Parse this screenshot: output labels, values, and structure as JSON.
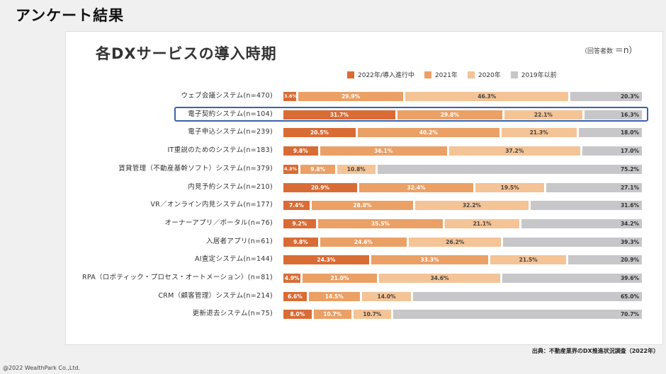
{
  "page_heading": "アンケート結果",
  "chart_title": "各DXサービスの導入時期",
  "n_note_prefix": "（回答者数",
  "n_note_suffix": "＝n）",
  "source": "出典：不動産業界のDX推進状況調査（2022年）",
  "copyright": "@2022 WealthPark Co.,Ltd.",
  "colors": {
    "2022": "#d96c35",
    "2021": "#eba066",
    "2020": "#f4c396",
    "2019": "#c7c7ca",
    "highlight": "#3b64a8"
  },
  "chart_data": {
    "type": "bar",
    "orientation": "horizontal",
    "stacked": true,
    "percent_scale": true,
    "legend_position": "top-right",
    "series": [
      {
        "name": "2022年/導入進行中"
      },
      {
        "name": "2021年"
      },
      {
        "name": "2020年"
      },
      {
        "name": "2019年以前"
      }
    ],
    "rows": [
      {
        "label": "ウェブ会議システム",
        "n": "(n=470)",
        "values": [
          3.6,
          29.9,
          46.3,
          20.3
        ]
      },
      {
        "label": "電子契約システム",
        "n": "(n=104)",
        "values": [
          31.7,
          29.8,
          22.1,
          16.3
        ],
        "highlight": true
      },
      {
        "label": "電子申込システム",
        "n": "(n=239)",
        "values": [
          20.5,
          40.2,
          21.3,
          18.0
        ]
      },
      {
        "label": "IT重説のためのシステム",
        "n": "(n=183)",
        "values": [
          9.8,
          36.1,
          37.2,
          17.0
        ]
      },
      {
        "label": "賃貸管理（不動産基幹ソフト）システム",
        "n": "(n=379)",
        "values": [
          4.3,
          9.8,
          10.8,
          75.2
        ]
      },
      {
        "label": "内見予約システム",
        "n": "(n=210)",
        "values": [
          20.9,
          32.4,
          19.5,
          27.1
        ]
      },
      {
        "label": "VR／オンライン内見システム",
        "n": "(n=177)",
        "values": [
          7.4,
          28.8,
          32.2,
          31.6
        ]
      },
      {
        "label": "オーナーアプリ／ポータル",
        "n": "(n=76)",
        "values": [
          9.2,
          35.5,
          21.1,
          34.2
        ]
      },
      {
        "label": "入居者アプリ",
        "n": "(n=61)",
        "values": [
          9.8,
          24.6,
          26.2,
          39.3
        ]
      },
      {
        "label": "AI査定システム",
        "n": "(n=144)",
        "values": [
          24.3,
          33.3,
          21.5,
          20.9
        ]
      },
      {
        "label": "RPA（ロボティック・プロセス・オートメーション）",
        "n": "(n=81)",
        "values": [
          4.9,
          21.0,
          34.6,
          39.6
        ]
      },
      {
        "label": "CRM（顧客管理）システム",
        "n": "(n=214)",
        "values": [
          6.6,
          14.5,
          14.0,
          65.0
        ]
      },
      {
        "label": "更新退去システム",
        "n": "(n=75)",
        "values": [
          8.0,
          10.7,
          10.7,
          70.7
        ]
      }
    ]
  }
}
